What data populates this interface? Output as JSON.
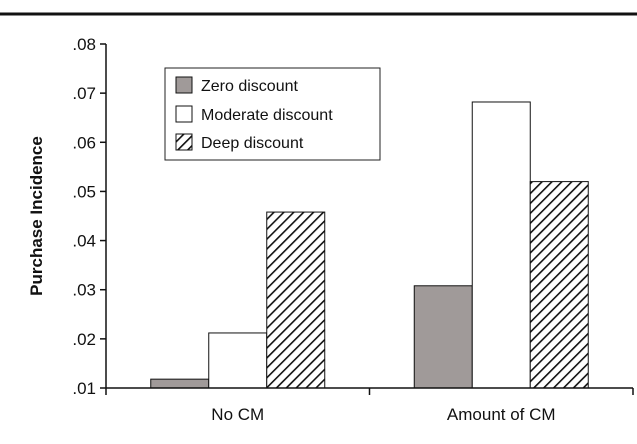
{
  "chart_data": {
    "type": "bar",
    "title": "",
    "xlabel": "",
    "ylabel": "Purchase Incidence",
    "ylim": [
      0.01,
      0.08
    ],
    "yticks": [
      ".01",
      ".02",
      ".03",
      ".04",
      ".05",
      ".06",
      ".07",
      ".08"
    ],
    "grid": false,
    "legend_position": "top-left",
    "categories": [
      "No CM",
      "Amount of CM"
    ],
    "series": [
      {
        "name": "Zero discount",
        "values": [
          0.0118,
          0.0308
        ],
        "fill": "#a09a99",
        "pattern": "solid"
      },
      {
        "name": "Moderate discount",
        "values": [
          0.0212,
          0.0682
        ],
        "fill": "#ffffff",
        "pattern": "solid"
      },
      {
        "name": "Deep discount",
        "values": [
          0.0458,
          0.052
        ],
        "fill": "#ffffff",
        "pattern": "diagonal-hatch"
      }
    ]
  }
}
